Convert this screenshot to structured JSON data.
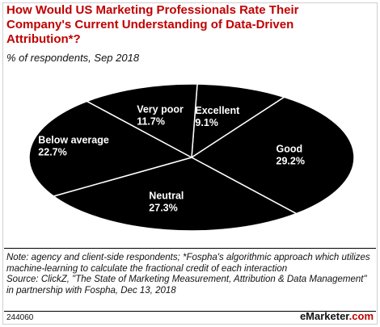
{
  "header": {
    "title": "How Would US Marketing Professionals Rate Their Company's Current Understanding of Data-Driven Attribution*?",
    "subtitle": "% of respondents, Sep 2018"
  },
  "chart_data": {
    "type": "pie",
    "title": "How Would US Marketing Professionals Rate Their Company's Current Understanding of Data-Driven Attribution*?",
    "subtitle": "% of respondents, Sep 2018",
    "unit": "%",
    "slices": [
      {
        "label": "Excellent",
        "value": 9.1,
        "display": "9.1%"
      },
      {
        "label": "Good",
        "value": 29.2,
        "display": "29.2%"
      },
      {
        "label": "Neutral",
        "value": 27.3,
        "display": "27.3%"
      },
      {
        "label": "Below average",
        "value": 22.7,
        "display": "22.7%"
      },
      {
        "label": "Very poor",
        "value": 11.7,
        "display": "11.7%"
      }
    ],
    "colors": {
      "fill": "#000000",
      "separator": "#ffffff",
      "label": "#ffffff"
    }
  },
  "notes": {
    "note": "Note: agency and client-side respondents; *Fospha's algorithmic approach which utilizes machine-learning to calculate the fractional credit of each interaction",
    "source": "Source: ClickZ, \"The State of Marketing Measurement, Attribution & Data Management\" in partnership with Fospha, Dec 13, 2018"
  },
  "footer": {
    "id": "244060",
    "brand_prefix": "e",
    "brand_name": "Marketer",
    "brand_suffix": ".com"
  }
}
